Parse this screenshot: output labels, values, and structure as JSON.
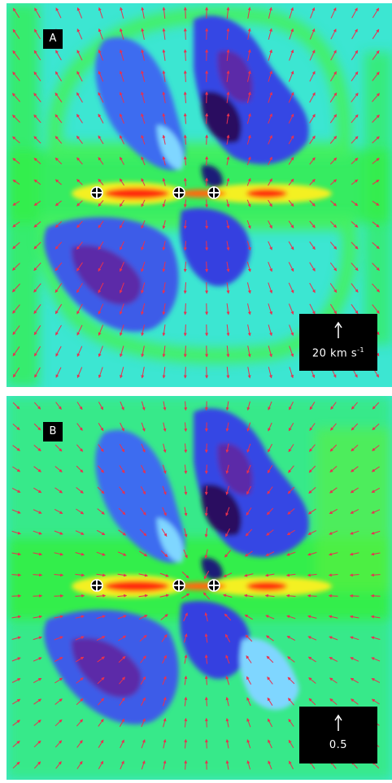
{
  "panels": [
    {
      "id": "a",
      "label": "A",
      "scale_value": "20 km s",
      "scale_exponent": "-1",
      "arrow_pattern": "outflow"
    },
    {
      "id": "b",
      "label": "B",
      "scale_value": "0.5",
      "scale_exponent": "",
      "arrow_pattern": "radial"
    }
  ],
  "colors": {
    "background": "#3ce6d2",
    "green": "#33ee44",
    "yellow": "#f4f020",
    "red": "#ff2a10",
    "blue": "#2f3ee0",
    "dark": "#4a1060",
    "arrow": "#e83050"
  },
  "markers": {
    "icon": "crosshair-circle-icon",
    "count": 3
  }
}
